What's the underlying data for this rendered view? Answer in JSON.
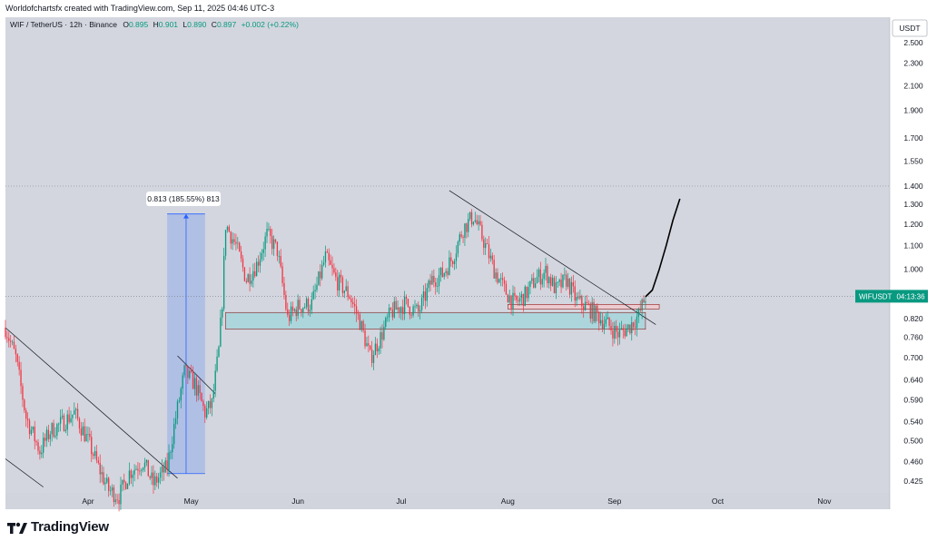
{
  "header": {
    "credit": "Worldofchartsfx created with TradingView.com, Sep 11, 2025 04:46 UTC-3"
  },
  "chart_data": {
    "type": "candlestick",
    "symbol_line": {
      "title": "WIF / TetherUS · 12h · Binance",
      "o_label": "O",
      "o": "0.895",
      "h_label": "H",
      "h": "0.901",
      "l_label": "L",
      "l": "0.890",
      "c_label": "C",
      "c": "0.897",
      "change": "+0.002 (+0.22%)"
    },
    "currency_badge": "USDT",
    "scale": "log",
    "y_ticks": [
      "2.500",
      "2.300",
      "2.100",
      "1.900",
      "1.700",
      "1.550",
      "1.400",
      "1.300",
      "1.200",
      "1.100",
      "1.000",
      "0.820",
      "0.760",
      "0.700",
      "0.640",
      "0.590",
      "0.540",
      "0.500",
      "0.460",
      "0.425"
    ],
    "x_ticks": [
      "Apr",
      "May",
      "Jun",
      "Jul",
      "Aug",
      "Sep",
      "Oct",
      "Nov"
    ],
    "x_range": [
      "2025-03-08",
      "2025-11-20"
    ],
    "last_price": {
      "ticker": "WIFUSDT",
      "timer": "04:13:36",
      "value": 0.897
    },
    "measure_label": "0.813 (185.55%) 813",
    "measure": {
      "from_date": "2025-04-24",
      "to_date": "2025-05-05",
      "low": 0.438,
      "high": 1.251
    },
    "support_zone": {
      "from_date": "2025-05-11",
      "to_date": "2025-09-10",
      "low": 0.785,
      "high": 0.84
    },
    "resistance_box": {
      "from_date": "2025-08-01",
      "to_date": "2025-09-14",
      "low": 0.852,
      "high": 0.868
    },
    "trendlines": [
      {
        "from": [
          "2025-03-08",
          0.79
        ],
        "to": [
          "2025-04-27",
          0.43
        ]
      },
      {
        "from": [
          "2025-03-08",
          0.465
        ],
        "to": [
          "2025-03-19",
          0.415
        ]
      },
      {
        "from": [
          "2025-04-27",
          0.705
        ],
        "to": [
          "2025-05-08",
          0.605
        ]
      },
      {
        "from": [
          "2025-07-15",
          1.375
        ],
        "to": [
          "2025-09-13",
          0.8
        ]
      }
    ],
    "projection": [
      [
        "2025-09-10",
        0.895
      ],
      [
        "2025-09-12",
        0.92
      ],
      [
        "2025-09-14",
        1.0
      ],
      [
        "2025-09-16",
        1.1
      ],
      [
        "2025-09-18",
        1.22
      ],
      [
        "2025-09-20",
        1.33
      ]
    ],
    "path": [
      [
        "2025-03-08",
        0.79
      ],
      [
        "2025-03-11",
        0.7
      ],
      [
        "2025-03-14",
        0.55
      ],
      [
        "2025-03-18",
        0.48
      ],
      [
        "2025-03-21",
        0.52
      ],
      [
        "2025-03-25",
        0.54
      ],
      [
        "2025-03-28",
        0.56
      ],
      [
        "2025-04-01",
        0.5
      ],
      [
        "2025-04-04",
        0.45
      ],
      [
        "2025-04-07",
        0.41
      ],
      [
        "2025-04-10",
        0.4
      ],
      [
        "2025-04-13",
        0.44
      ],
      [
        "2025-04-17",
        0.46
      ],
      [
        "2025-04-20",
        0.42
      ],
      [
        "2025-04-24",
        0.45
      ],
      [
        "2025-04-26",
        0.53
      ],
      [
        "2025-04-29",
        0.66
      ],
      [
        "2025-05-02",
        0.63
      ],
      [
        "2025-05-05",
        0.56
      ],
      [
        "2025-05-07",
        0.58
      ],
      [
        "2025-05-09",
        0.72
      ],
      [
        "2025-05-10",
        0.88
      ],
      [
        "2025-05-11",
        1.2
      ],
      [
        "2025-05-14",
        1.1
      ],
      [
        "2025-05-17",
        0.96
      ],
      [
        "2025-05-20",
        1.02
      ],
      [
        "2025-05-23",
        1.15
      ],
      [
        "2025-05-26",
        1.08
      ],
      [
        "2025-05-29",
        0.82
      ],
      [
        "2025-06-01",
        0.86
      ],
      [
        "2025-06-05",
        0.87
      ],
      [
        "2025-06-09",
        1.05
      ],
      [
        "2025-06-12",
        0.96
      ],
      [
        "2025-06-16",
        0.9
      ],
      [
        "2025-06-19",
        0.81
      ],
      [
        "2025-06-22",
        0.7
      ],
      [
        "2025-06-25",
        0.76
      ],
      [
        "2025-06-28",
        0.84
      ],
      [
        "2025-07-02",
        0.87
      ],
      [
        "2025-07-06",
        0.84
      ],
      [
        "2025-07-10",
        0.96
      ],
      [
        "2025-07-13",
        0.98
      ],
      [
        "2025-07-16",
        1.05
      ],
      [
        "2025-07-19",
        1.18
      ],
      [
        "2025-07-22",
        1.24
      ],
      [
        "2025-07-25",
        1.12
      ],
      [
        "2025-07-28",
        1.0
      ],
      [
        "2025-07-31",
        0.92
      ],
      [
        "2025-08-03",
        0.87
      ],
      [
        "2025-08-06",
        0.9
      ],
      [
        "2025-08-09",
        0.96
      ],
      [
        "2025-08-12",
        0.99
      ],
      [
        "2025-08-15",
        0.92
      ],
      [
        "2025-08-18",
        0.96
      ],
      [
        "2025-08-21",
        0.88
      ],
      [
        "2025-08-24",
        0.86
      ],
      [
        "2025-08-27",
        0.83
      ],
      [
        "2025-08-30",
        0.8
      ],
      [
        "2025-09-02",
        0.77
      ],
      [
        "2025-09-05",
        0.79
      ],
      [
        "2025-09-08",
        0.83
      ],
      [
        "2025-09-10",
        0.897
      ]
    ],
    "colors": {
      "up": "#089981",
      "down": "#f23645",
      "accent": "#2962ff",
      "zone": "#a8d5dc"
    }
  },
  "footer": {
    "brand": "TradingView"
  }
}
